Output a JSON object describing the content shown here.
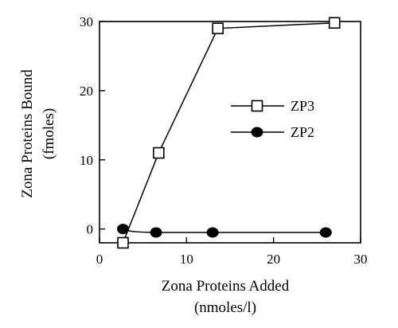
{
  "chart_data": {
    "type": "line",
    "title": "",
    "xlabel": "Zona Proteins Added",
    "xlabel_unit": "(nmoles/l)",
    "ylabel": "Zona Proteins Bound",
    "ylabel_unit": "(fmoles)",
    "xlim": [
      0,
      30
    ],
    "ylim": [
      -2,
      30
    ],
    "x_ticks": [
      0,
      10,
      20,
      30
    ],
    "y_ticks": [
      0,
      10,
      20,
      30
    ],
    "grid": false,
    "legend_position": "center-right",
    "series": [
      {
        "name": "ZP3",
        "marker": "open-square",
        "color": "#000000",
        "points": [
          {
            "x": 2.7,
            "y": -2
          },
          {
            "x": 6.8,
            "y": 11
          },
          {
            "x": 13.6,
            "y": 29
          },
          {
            "x": 27,
            "y": 29.8
          }
        ]
      },
      {
        "name": "ZP2",
        "marker": "filled-circle",
        "color": "#000000",
        "points": [
          {
            "x": 2.7,
            "y": 0
          },
          {
            "x": 6.5,
            "y": -0.5
          },
          {
            "x": 13,
            "y": -0.5
          },
          {
            "x": 26,
            "y": -0.5
          }
        ]
      }
    ]
  }
}
